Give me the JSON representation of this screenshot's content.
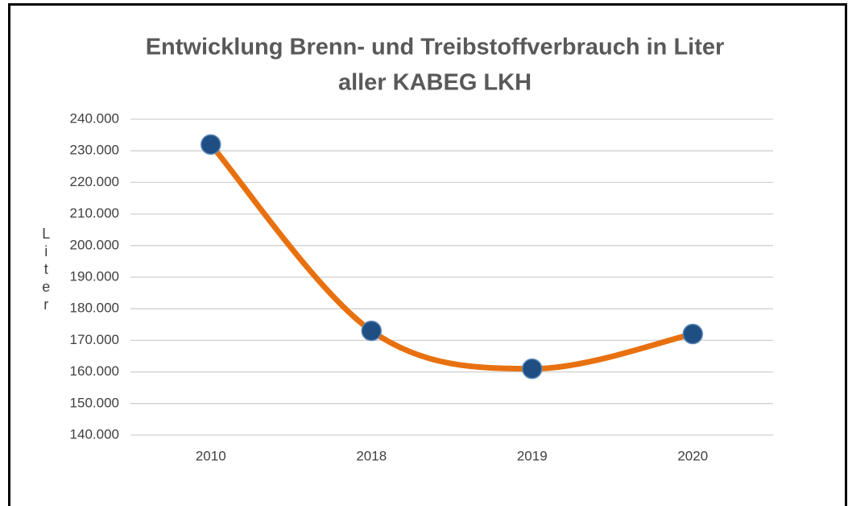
{
  "chart_data": {
    "type": "line",
    "title": [
      "Entwicklung Brenn- und Treibstoffverbrauch in Liter",
      "aller KABEG LKH"
    ],
    "y_label": "Liter",
    "categories": [
      "2010",
      "2018",
      "2019",
      "2020"
    ],
    "values": [
      232000,
      173000,
      161000,
      172000
    ],
    "color": "#e8710f",
    "marker_color": "#1f4e83",
    "ylim": [
      140000,
      240000
    ],
    "yticks": [
      {
        "value": 140000,
        "label": "140.000"
      },
      {
        "value": 150000,
        "label": "150.000"
      },
      {
        "value": 160000,
        "label": "160.000"
      },
      {
        "value": 170000,
        "label": "170.000"
      },
      {
        "value": 180000,
        "label": "180.000"
      },
      {
        "value": 190000,
        "label": "190.000"
      },
      {
        "value": 200000,
        "label": "200.000"
      },
      {
        "value": 210000,
        "label": "210.000"
      },
      {
        "value": 220000,
        "label": "220.000"
      },
      {
        "value": 230000,
        "label": "230.000"
      },
      {
        "value": 240000,
        "label": "240.000"
      }
    ],
    "grid": true,
    "smooth": true
  }
}
